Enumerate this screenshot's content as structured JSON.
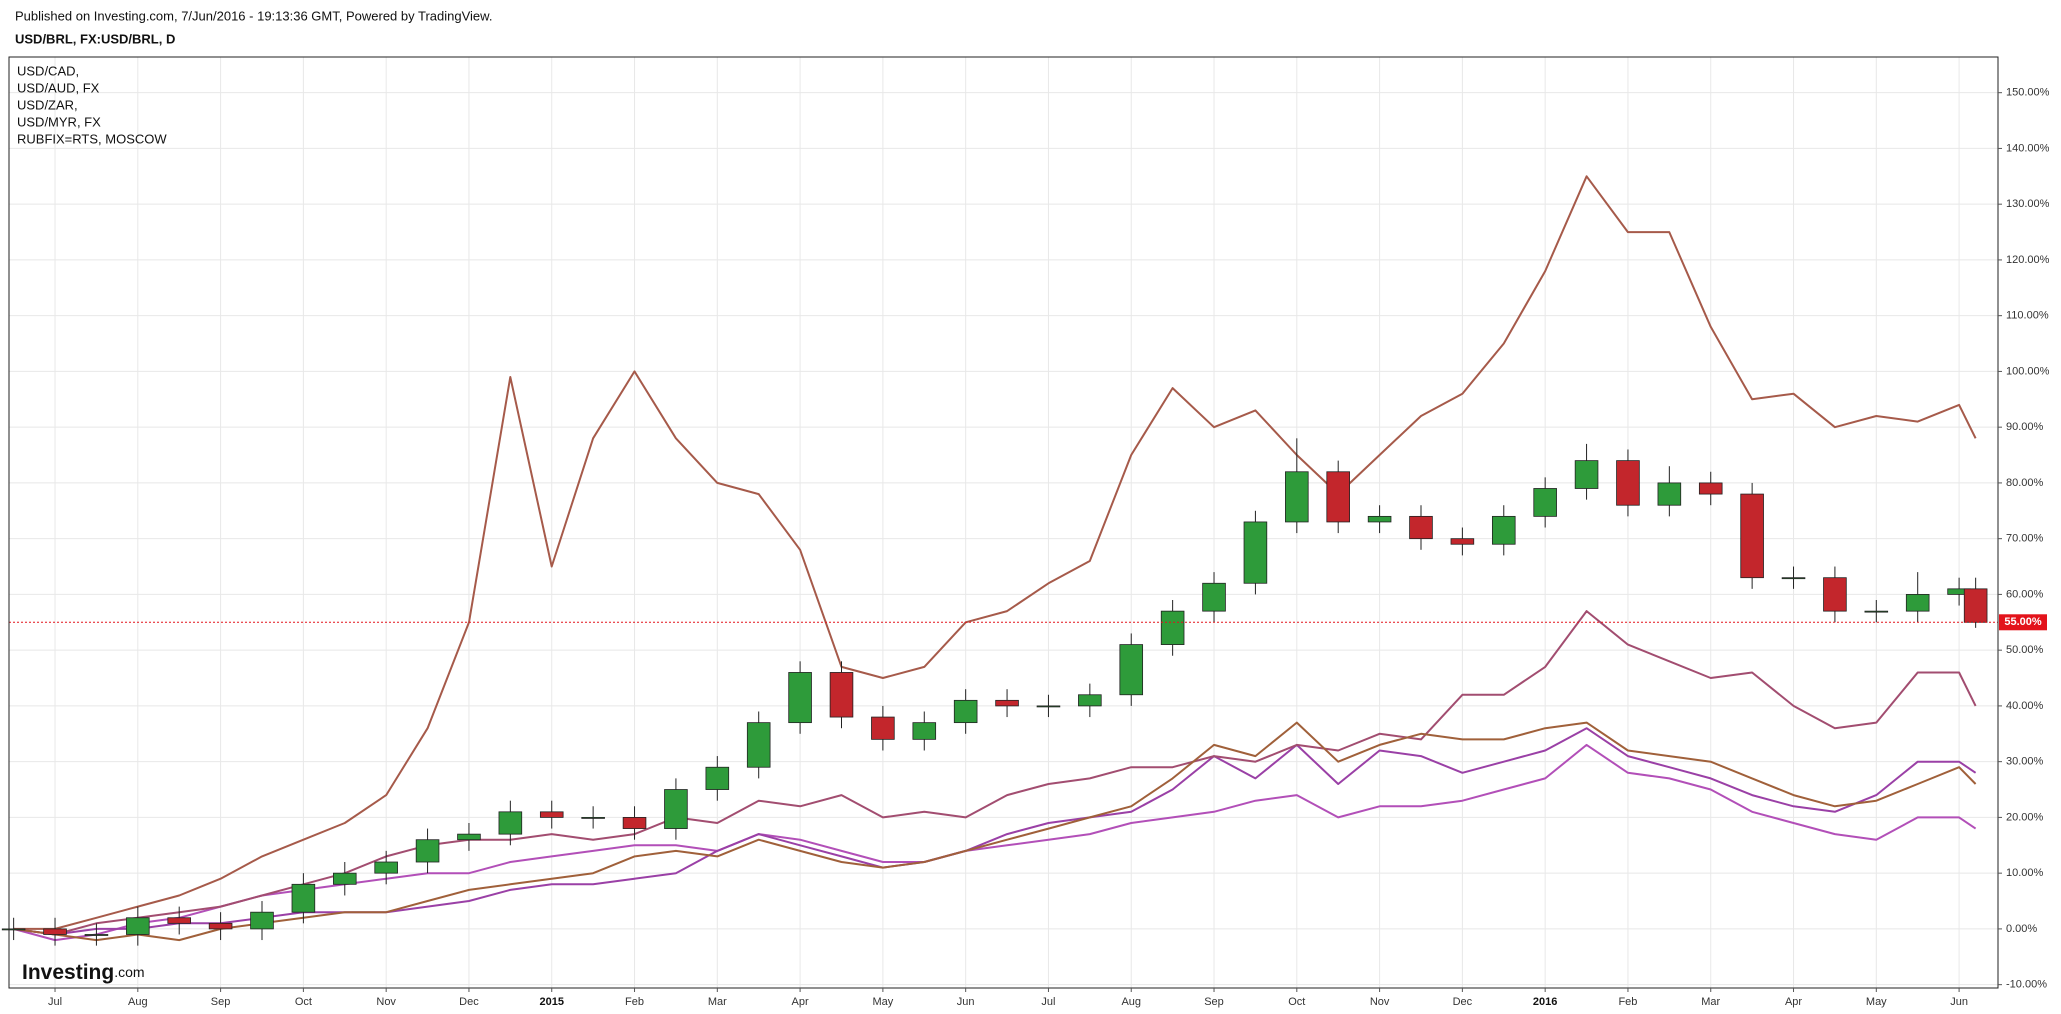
{
  "header": {
    "published": "Published on Investing.com, 7/Jun/2016 - 19:13:36 GMT, Powered by TradingView.",
    "symbol": "USD/BRL, FX:USD/BRL, D"
  },
  "logo": {
    "name": "Investing",
    "suffix": ".com"
  },
  "chart_data": {
    "type": "candlestick",
    "x": [
      -0.5,
      0,
      0.5,
      1,
      1.5,
      2,
      2.5,
      3,
      3.5,
      4,
      4.5,
      5,
      5.5,
      6,
      6.5,
      7,
      7.5,
      8,
      8.5,
      9,
      9.5,
      10,
      10.5,
      11,
      11.5,
      12,
      12.5,
      13,
      13.5,
      14,
      14.5,
      15,
      15.5,
      16,
      16.5,
      17,
      17.5,
      18,
      18.5,
      19,
      19.5,
      20,
      20.5,
      21,
      21.5,
      22,
      22.5,
      23,
      23.2
    ],
    "open": [
      0,
      0,
      -1,
      -1,
      2,
      1,
      0,
      3,
      8,
      10,
      12,
      16,
      17,
      21,
      20,
      20,
      18,
      25,
      29,
      37,
      46,
      38,
      34,
      37,
      41,
      40,
      40,
      42,
      51,
      57,
      62,
      73,
      82,
      73,
      74,
      70,
      69,
      74,
      79,
      84,
      76,
      80,
      78,
      63,
      63,
      57,
      57,
      60,
      61
    ],
    "high": [
      2,
      2,
      1,
      4,
      4,
      3,
      5,
      10,
      12,
      14,
      18,
      19,
      23,
      23,
      22,
      22,
      27,
      31,
      39,
      48,
      48,
      40,
      39,
      43,
      43,
      42,
      44,
      53,
      59,
      64,
      75,
      88,
      84,
      76,
      76,
      72,
      76,
      81,
      87,
      86,
      83,
      82,
      80,
      65,
      65,
      59,
      64,
      63,
      63
    ],
    "low": [
      -2,
      -3,
      -3,
      -3,
      -1,
      -2,
      -2,
      1,
      6,
      8,
      10,
      14,
      15,
      18,
      18,
      16,
      16,
      23,
      27,
      35,
      36,
      32,
      32,
      35,
      38,
      38,
      38,
      40,
      49,
      55,
      60,
      71,
      71,
      71,
      68,
      67,
      67,
      72,
      77,
      74,
      74,
      76,
      61,
      61,
      55,
      55,
      55,
      58,
      54
    ],
    "close": [
      0,
      -1,
      -1,
      2,
      1,
      0,
      3,
      8,
      10,
      12,
      16,
      17,
      21,
      20,
      20,
      18,
      25,
      29,
      37,
      46,
      38,
      34,
      37,
      41,
      40,
      40,
      42,
      51,
      57,
      62,
      73,
      82,
      73,
      74,
      70,
      69,
      74,
      79,
      84,
      76,
      80,
      78,
      63,
      63,
      57,
      57,
      60,
      61,
      55
    ],
    "up_color": "#2e9b3a",
    "down_color": "#c3262c",
    "series": [
      {
        "name": "USD/CAD,",
        "color": "#b24fb8",
        "values": [
          0,
          -2,
          -1,
          1,
          2,
          4,
          6,
          7,
          8,
          9,
          10,
          10,
          12,
          13,
          14,
          15,
          15,
          14,
          17,
          16,
          14,
          12,
          12,
          14,
          15,
          16,
          17,
          19,
          20,
          21,
          23,
          24,
          20,
          22,
          22,
          23,
          25,
          27,
          33,
          28,
          27,
          25,
          21,
          19,
          17,
          16,
          20,
          20,
          18
        ]
      },
      {
        "name": "USD/AUD, FX",
        "color": "#9a40a6",
        "values": [
          0,
          -1,
          0,
          0,
          1,
          1,
          2,
          3,
          3,
          3,
          4,
          5,
          7,
          8,
          8,
          9,
          10,
          14,
          17,
          15,
          13,
          11,
          12,
          14,
          17,
          19,
          20,
          21,
          25,
          31,
          27,
          33,
          26,
          32,
          31,
          28,
          30,
          32,
          36,
          31,
          29,
          27,
          24,
          22,
          21,
          24,
          30,
          30,
          28
        ]
      },
      {
        "name": "USD/ZAR,",
        "color": "#a24d70",
        "values": [
          0,
          -1,
          1,
          2,
          3,
          4,
          6,
          8,
          10,
          13,
          15,
          16,
          16,
          17,
          16,
          17,
          20,
          19,
          23,
          22,
          24,
          20,
          21,
          20,
          24,
          26,
          27,
          29,
          29,
          31,
          30,
          33,
          32,
          35,
          34,
          42,
          42,
          47,
          57,
          51,
          48,
          45,
          46,
          40,
          36,
          37,
          46,
          46,
          40
        ]
      },
      {
        "name": "USD/MYR, FX",
        "color": "#a0603a",
        "values": [
          0,
          -1,
          -2,
          -1,
          -2,
          0,
          1,
          2,
          3,
          3,
          5,
          7,
          8,
          9,
          10,
          13,
          14,
          13,
          16,
          14,
          12,
          11,
          12,
          14,
          16,
          18,
          20,
          22,
          27,
          33,
          31,
          37,
          30,
          33,
          35,
          34,
          34,
          36,
          37,
          32,
          31,
          30,
          27,
          24,
          22,
          23,
          26,
          29,
          26
        ]
      },
      {
        "name": "RUBFIX=RTS, MOSCOW",
        "color": "#a65a4a",
        "values": [
          0,
          0,
          2,
          4,
          6,
          9,
          13,
          16,
          19,
          24,
          36,
          55,
          99,
          65,
          88,
          100,
          88,
          80,
          78,
          68,
          47,
          45,
          47,
          55,
          57,
          62,
          66,
          85,
          97,
          90,
          93,
          85,
          78,
          85,
          92,
          96,
          105,
          118,
          135,
          125,
          125,
          108,
          95,
          96,
          90,
          92,
          91,
          94,
          88
        ]
      }
    ],
    "xlim": [
      -0.556,
      23.47
    ],
    "xticks": [
      {
        "value": 0,
        "label": "Jul"
      },
      {
        "value": 1,
        "label": "Aug"
      },
      {
        "value": 2,
        "label": "Sep"
      },
      {
        "value": 3,
        "label": "Oct"
      },
      {
        "value": 4,
        "label": "Nov"
      },
      {
        "value": 5,
        "label": "Dec"
      },
      {
        "value": 6,
        "label": "2015"
      },
      {
        "value": 7,
        "label": "Feb"
      },
      {
        "value": 8,
        "label": "Mar"
      },
      {
        "value": 9,
        "label": "Apr"
      },
      {
        "value": 10,
        "label": "May"
      },
      {
        "value": 11,
        "label": "Jun"
      },
      {
        "value": 12,
        "label": "Jul"
      },
      {
        "value": 13,
        "label": "Aug"
      },
      {
        "value": 14,
        "label": "Sep"
      },
      {
        "value": 15,
        "label": "Oct"
      },
      {
        "value": 16,
        "label": "Nov"
      },
      {
        "value": 17,
        "label": "Dec"
      },
      {
        "value": 18,
        "label": "2016"
      },
      {
        "value": 19,
        "label": "Feb"
      },
      {
        "value": 20,
        "label": "Mar"
      },
      {
        "value": 21,
        "label": "Apr"
      },
      {
        "value": 22,
        "label": "May"
      },
      {
        "value": 23,
        "label": "Jun"
      }
    ],
    "ylim": [
      -10.6,
      156.4
    ],
    "yticks": [
      {
        "value": -10,
        "label": "-10.00%"
      },
      {
        "value": 0,
        "label": "0.00%"
      },
      {
        "value": 10,
        "label": "10.00%"
      },
      {
        "value": 20,
        "label": "20.00%"
      },
      {
        "value": 30,
        "label": "30.00%"
      },
      {
        "value": 40,
        "label": "40.00%"
      },
      {
        "value": 50,
        "label": "50.00%"
      },
      {
        "value": 60,
        "label": "60.00%"
      },
      {
        "value": 70,
        "label": "70.00%"
      },
      {
        "value": 80,
        "label": "80.00%"
      },
      {
        "value": 90,
        "label": "90.00%"
      },
      {
        "value": 100,
        "label": "100.00%"
      },
      {
        "value": 110,
        "label": "110.00%"
      },
      {
        "value": 120,
        "label": "120.00%"
      },
      {
        "value": 130,
        "label": "130.00%"
      },
      {
        "value": 140,
        "label": "140.00%"
      },
      {
        "value": 150,
        "label": "150.00%"
      }
    ],
    "grid": true,
    "price_line": {
      "value": 55,
      "label": "55.00%",
      "color": "#e3131b"
    }
  }
}
